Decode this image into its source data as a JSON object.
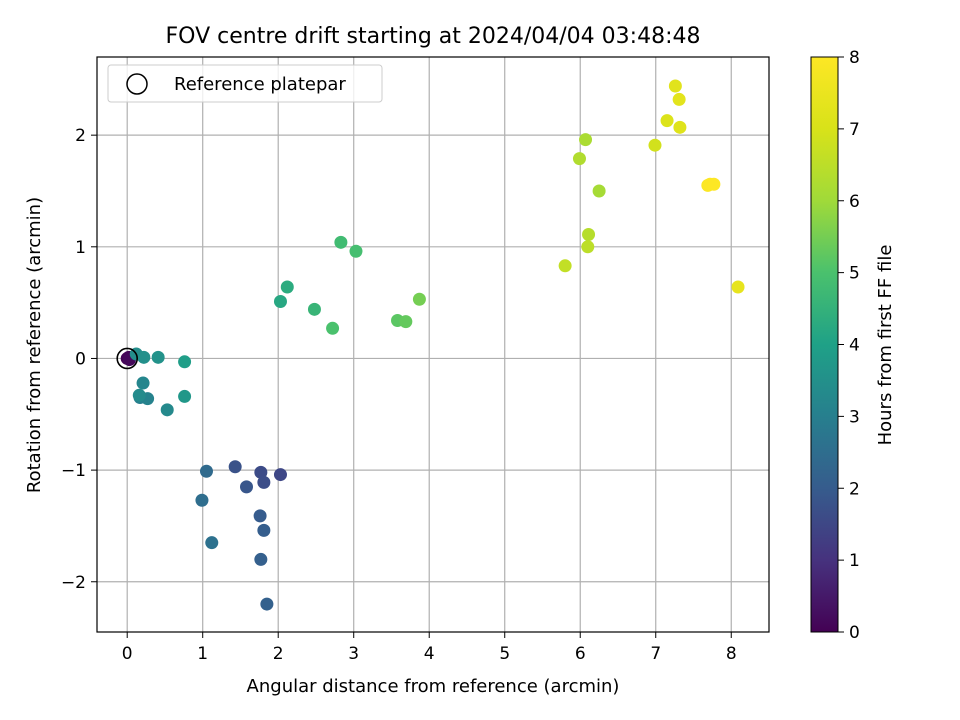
{
  "chart_data": {
    "type": "scatter",
    "title": "FOV centre drift starting at 2024/04/04 03:48:48",
    "xlabel": "Angular distance from reference (arcmin)",
    "ylabel": "Rotation from reference (arcmin)",
    "xlim": [
      -0.4,
      8.5
    ],
    "ylim": [
      -2.45,
      2.7
    ],
    "xticks": [
      0,
      1,
      2,
      3,
      4,
      5,
      6,
      7,
      8
    ],
    "yticks": [
      -2,
      -1,
      0,
      1,
      2
    ],
    "grid": true,
    "legend": {
      "placement": "top-left",
      "entries": [
        "Reference platepar"
      ]
    },
    "reference": {
      "x": 0,
      "y": 0,
      "label": "Reference platepar"
    },
    "colorbar": {
      "label": "Hours from first FF file",
      "range": [
        0,
        8
      ],
      "ticks": [
        0,
        1,
        2,
        3,
        4,
        5,
        6,
        7,
        8
      ],
      "colormap": "viridis"
    },
    "points": [
      {
        "x": 0.0,
        "y": 0.0,
        "c": 0.05
      },
      {
        "x": 0.02,
        "y": 0.01,
        "c": 0.1
      },
      {
        "x": 0.03,
        "y": -0.01,
        "c": 0.15
      },
      {
        "x": 2.03,
        "y": -1.04,
        "c": 1.5
      },
      {
        "x": 1.77,
        "y": -1.02,
        "c": 1.6
      },
      {
        "x": 1.81,
        "y": -1.11,
        "c": 1.65
      },
      {
        "x": 1.43,
        "y": -0.97,
        "c": 1.75
      },
      {
        "x": 1.58,
        "y": -1.15,
        "c": 1.85
      },
      {
        "x": 1.76,
        "y": -1.41,
        "c": 2.0
      },
      {
        "x": 1.81,
        "y": -1.54,
        "c": 2.05
      },
      {
        "x": 1.77,
        "y": -1.8,
        "c": 2.1
      },
      {
        "x": 1.85,
        "y": -2.2,
        "c": 2.15
      },
      {
        "x": 1.05,
        "y": -1.01,
        "c": 2.4
      },
      {
        "x": 0.99,
        "y": -1.27,
        "c": 2.5
      },
      {
        "x": 1.12,
        "y": -1.65,
        "c": 2.6
      },
      {
        "x": 0.17,
        "y": -0.35,
        "c": 3.0
      },
      {
        "x": 0.27,
        "y": -0.36,
        "c": 3.1
      },
      {
        "x": 0.21,
        "y": -0.22,
        "c": 3.2
      },
      {
        "x": 0.53,
        "y": -0.46,
        "c": 3.3
      },
      {
        "x": 0.16,
        "y": -0.33,
        "c": 3.35
      },
      {
        "x": 0.12,
        "y": 0.04,
        "c": 3.4
      },
      {
        "x": 0.22,
        "y": 0.01,
        "c": 3.5
      },
      {
        "x": 0.41,
        "y": 0.01,
        "c": 3.55
      },
      {
        "x": 0.76,
        "y": -0.34,
        "c": 3.7
      },
      {
        "x": 0.76,
        "y": -0.03,
        "c": 3.9
      },
      {
        "x": 2.03,
        "y": 0.51,
        "c": 4.2
      },
      {
        "x": 2.12,
        "y": 0.64,
        "c": 4.3
      },
      {
        "x": 2.48,
        "y": 0.44,
        "c": 4.6
      },
      {
        "x": 2.83,
        "y": 1.04,
        "c": 4.8
      },
      {
        "x": 3.03,
        "y": 0.96,
        "c": 4.9
      },
      {
        "x": 2.72,
        "y": 0.27,
        "c": 5.0
      },
      {
        "x": 3.58,
        "y": 0.34,
        "c": 5.2
      },
      {
        "x": 3.69,
        "y": 0.33,
        "c": 5.3
      },
      {
        "x": 3.87,
        "y": 0.53,
        "c": 5.5
      },
      {
        "x": 6.25,
        "y": 1.5,
        "c": 6.1
      },
      {
        "x": 6.07,
        "y": 1.96,
        "c": 6.2
      },
      {
        "x": 5.99,
        "y": 1.79,
        "c": 6.3
      },
      {
        "x": 6.11,
        "y": 1.11,
        "c": 6.4
      },
      {
        "x": 6.1,
        "y": 1.0,
        "c": 6.5
      },
      {
        "x": 5.8,
        "y": 0.83,
        "c": 6.6
      },
      {
        "x": 6.99,
        "y": 1.91,
        "c": 6.9
      },
      {
        "x": 7.15,
        "y": 2.13,
        "c": 7.1
      },
      {
        "x": 7.32,
        "y": 2.07,
        "c": 7.2
      },
      {
        "x": 7.26,
        "y": 2.44,
        "c": 7.25
      },
      {
        "x": 7.31,
        "y": 2.32,
        "c": 7.3
      },
      {
        "x": 8.09,
        "y": 0.64,
        "c": 7.4
      },
      {
        "x": 7.69,
        "y": 1.55,
        "c": 7.95
      },
      {
        "x": 7.72,
        "y": 1.56,
        "c": 7.98
      },
      {
        "x": 7.77,
        "y": 1.56,
        "c": 8.0
      }
    ]
  }
}
